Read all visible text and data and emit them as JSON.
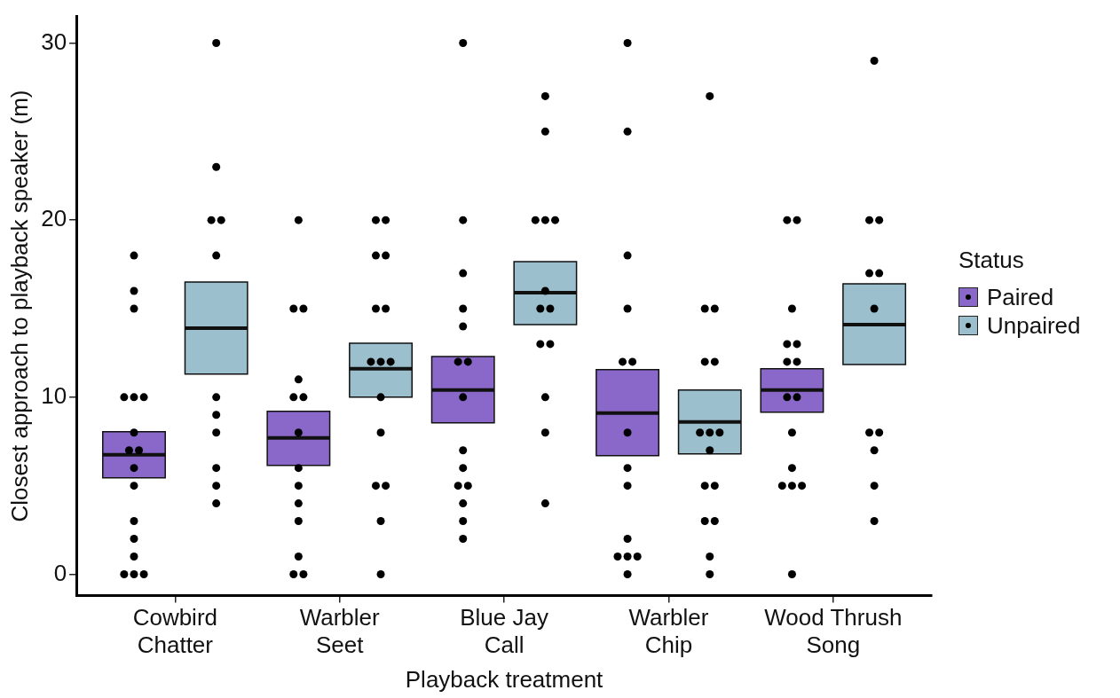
{
  "chart_data": {
    "type": "box",
    "xlabel": "Playback treatment",
    "ylabel": "Closest approach to playback speaker (m)",
    "legend_title": "Status",
    "legend": "right",
    "grid": false,
    "marker": "circle",
    "categories": [
      "Cowbird Chatter",
      "Warbler Seet",
      "Blue Jay Call",
      "Warbler Chip",
      "Wood Thrush Song"
    ],
    "ylim": [
      -1.2,
      31.5
    ],
    "yticks": [
      0,
      10,
      20,
      30
    ],
    "series": [
      {
        "name": "Paired",
        "color": "#8a68c9",
        "boxes": [
          {
            "low": 5.45,
            "q1": 5.45,
            "median": 6.75,
            "q3": 8.05,
            "high": 8.05
          },
          {
            "low": 6.15,
            "q1": 6.15,
            "median": 7.7,
            "q3": 9.2,
            "high": 9.2
          },
          {
            "low": 8.55,
            "q1": 8.55,
            "median": 10.4,
            "q3": 12.3,
            "high": 12.3
          },
          {
            "low": 6.7,
            "q1": 6.7,
            "median": 9.1,
            "q3": 11.55,
            "high": 11.55
          },
          {
            "low": 9.15,
            "q1": 9.15,
            "median": 10.4,
            "q3": 11.6,
            "high": 11.6
          }
        ]
      },
      {
        "name": "Unpaired",
        "color": "#9bbfcc",
        "boxes": [
          {
            "low": 11.3,
            "q1": 11.3,
            "median": 13.9,
            "q3": 16.5,
            "high": 16.5
          },
          {
            "low": 10,
            "q1": 10,
            "median": 11.6,
            "q3": 13.05,
            "high": 13.05
          },
          {
            "low": 14.1,
            "q1": 14.1,
            "median": 15.9,
            "q3": 17.65,
            "high": 17.65
          },
          {
            "low": 6.8,
            "q1": 6.8,
            "median": 8.6,
            "q3": 10.4,
            "high": 10.4
          },
          {
            "low": 11.85,
            "q1": 11.85,
            "median": 14.1,
            "q3": 16.4,
            "high": 16.4
          }
        ]
      },
      {
        "type": "scatter",
        "color": "#000000",
        "x": [
          "Cowbird Chatter",
          "Cowbird Chatter",
          "Cowbird Chatter",
          "Cowbird Chatter",
          "Cowbird Chatter",
          "Cowbird Chatter",
          "Cowbird Chatter",
          "Cowbird Chatter",
          "Cowbird Chatter",
          "Cowbird Chatter",
          "Cowbird Chatter",
          "Cowbird Chatter",
          "Cowbird Chatter",
          "Cowbird Chatter",
          "Cowbird Chatter",
          "Cowbird Chatter",
          "Cowbird Chatter",
          "Warbler Seet",
          "Warbler Seet",
          "Warbler Seet",
          "Warbler Seet",
          "Warbler Seet",
          "Warbler Seet",
          "Warbler Seet",
          "Warbler Seet",
          "Warbler Seet",
          "Warbler Seet",
          "Warbler Seet",
          "Warbler Seet",
          "Warbler Seet",
          "Warbler Seet",
          "Blue Jay Call",
          "Blue Jay Call",
          "Blue Jay Call",
          "Blue Jay Call",
          "Blue Jay Call",
          "Blue Jay Call",
          "Blue Jay Call",
          "Blue Jay Call",
          "Blue Jay Call",
          "Blue Jay Call",
          "Blue Jay Call",
          "Blue Jay Call",
          "Blue Jay Call",
          "Blue Jay Call",
          "Blue Jay Call",
          "Warbler Chip",
          "Warbler Chip",
          "Warbler Chip",
          "Warbler Chip",
          "Warbler Chip",
          "Warbler Chip",
          "Warbler Chip",
          "Warbler Chip",
          "Warbler Chip",
          "Warbler Chip",
          "Warbler Chip",
          "Warbler Chip",
          "Warbler Chip",
          "Warbler Chip",
          "Wood Thrush Song",
          "Wood Thrush Song",
          "Wood Thrush Song",
          "Wood Thrush Song",
          "Wood Thrush Song",
          "Wood Thrush Song",
          "Wood Thrush Song",
          "Wood Thrush Song",
          "Wood Thrush Song",
          "Wood Thrush Song",
          "Wood Thrush Song",
          "Wood Thrush Song",
          "Wood Thrush Song",
          "Wood Thrush Song",
          "Wood Thrush Song"
        ],
        "values": [
          18,
          16,
          15,
          10,
          10,
          10,
          8,
          7,
          7,
          6,
          5,
          3,
          2,
          1,
          0,
          0,
          0,
          20,
          15,
          15,
          11,
          10,
          10,
          8,
          6,
          5,
          4,
          3,
          1,
          0,
          0,
          30,
          20,
          17,
          15,
          14,
          12,
          12,
          10,
          7,
          6,
          5,
          5,
          4,
          3,
          2,
          30,
          25,
          18,
          15,
          12,
          12,
          8,
          6,
          5,
          2,
          1,
          1,
          1,
          0,
          20,
          20,
          15,
          13,
          13,
          12,
          12,
          10,
          10,
          8,
          6,
          5,
          5,
          5,
          0
        ]
      },
      {
        "type": "scatter",
        "color": "#000000",
        "x": [
          "Cowbird Chatter",
          "Cowbird Chatter",
          "Cowbird Chatter",
          "Cowbird Chatter",
          "Cowbird Chatter",
          "Cowbird Chatter",
          "Cowbird Chatter",
          "Cowbird Chatter",
          "Cowbird Chatter",
          "Cowbird Chatter",
          "Cowbird Chatter",
          "Warbler Seet",
          "Warbler Seet",
          "Warbler Seet",
          "Warbler Seet",
          "Warbler Seet",
          "Warbler Seet",
          "Warbler Seet",
          "Warbler Seet",
          "Warbler Seet",
          "Warbler Seet",
          "Warbler Seet",
          "Warbler Seet",
          "Warbler Seet",
          "Warbler Seet",
          "Warbler Seet",
          "Blue Jay Call",
          "Blue Jay Call",
          "Blue Jay Call",
          "Blue Jay Call",
          "Blue Jay Call",
          "Blue Jay Call",
          "Blue Jay Call",
          "Blue Jay Call",
          "Blue Jay Call",
          "Blue Jay Call",
          "Blue Jay Call",
          "Blue Jay Call",
          "Blue Jay Call",
          "Warbler Chip",
          "Warbler Chip",
          "Warbler Chip",
          "Warbler Chip",
          "Warbler Chip",
          "Warbler Chip",
          "Warbler Chip",
          "Warbler Chip",
          "Warbler Chip",
          "Warbler Chip",
          "Warbler Chip",
          "Warbler Chip",
          "Warbler Chip",
          "Warbler Chip",
          "Warbler Chip",
          "Wood Thrush Song",
          "Wood Thrush Song",
          "Wood Thrush Song",
          "Wood Thrush Song",
          "Wood Thrush Song",
          "Wood Thrush Song",
          "Wood Thrush Song",
          "Wood Thrush Song",
          "Wood Thrush Song",
          "Wood Thrush Song",
          "Wood Thrush Song"
        ],
        "values": [
          30,
          23,
          20,
          20,
          18,
          10,
          9,
          8,
          6,
          5,
          4,
          20,
          20,
          18,
          18,
          15,
          15,
          12,
          12,
          12,
          10,
          8,
          5,
          5,
          3,
          0,
          27,
          25,
          20,
          20,
          20,
          16,
          15,
          15,
          13,
          13,
          10,
          8,
          4,
          27,
          15,
          15,
          12,
          12,
          8,
          8,
          8,
          7,
          5,
          5,
          3,
          3,
          1,
          0,
          29,
          20,
          20,
          17,
          17,
          15,
          8,
          8,
          7,
          5,
          3
        ]
      }
    ]
  }
}
